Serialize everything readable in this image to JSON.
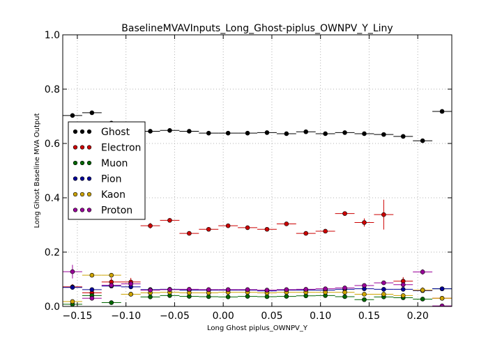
{
  "chart_data": {
    "type": "scatter",
    "title": "BaselineMVAVInputs_Long_Ghost-piplus_OWNPV_Y_Liny",
    "xlabel": "Long Ghost piplus_OWNPV_Y",
    "ylabel": "Long Ghost Baseline MVA Output",
    "xlim": [
      -0.165,
      0.235
    ],
    "ylim": [
      0.0,
      1.0
    ],
    "xticks": [
      "−0.15",
      "−0.10",
      "−0.05",
      "0.00",
      "0.05",
      "0.10",
      "0.15",
      "0.20"
    ],
    "xtick_values": [
      -0.15,
      -0.1,
      -0.05,
      0.0,
      0.05,
      0.1,
      0.15,
      0.2
    ],
    "yticks": [
      "0.0",
      "0.2",
      "0.4",
      "0.6",
      "0.8",
      "1.0"
    ],
    "ytick_values": [
      0.0,
      0.2,
      0.4,
      0.6,
      0.8,
      1.0
    ],
    "grid": true,
    "legend_position": "left",
    "x": [
      -0.155,
      -0.135,
      -0.115,
      -0.095,
      -0.075,
      -0.055,
      -0.035,
      -0.015,
      0.005,
      0.025,
      0.045,
      0.065,
      0.085,
      0.105,
      0.125,
      0.145,
      0.165,
      0.185,
      0.205,
      0.225
    ],
    "x_halfwidth": 0.01,
    "series": [
      {
        "name": "Ghost",
        "color": "#000000",
        "values": [
          0.703,
          0.713,
          0.675,
          0.655,
          0.645,
          0.648,
          0.645,
          0.638,
          0.638,
          0.638,
          0.64,
          0.636,
          0.643,
          0.636,
          0.64,
          0.636,
          0.633,
          0.626,
          0.61,
          0.718
        ],
        "errors": [
          0.005,
          0.005,
          0.005,
          0.005,
          0.004,
          0.004,
          0.004,
          0.004,
          0.004,
          0.004,
          0.004,
          0.004,
          0.004,
          0.004,
          0.004,
          0.004,
          0.004,
          0.005,
          0.006,
          0.007
        ]
      },
      {
        "name": "Electron",
        "color": "#cc0000",
        "values": [
          0.072,
          0.05,
          0.09,
          0.09,
          0.297,
          0.317,
          0.269,
          0.284,
          0.297,
          0.29,
          0.284,
          0.304,
          0.269,
          0.277,
          0.342,
          0.309,
          0.338,
          0.093,
          0.06,
          0.03
        ],
        "errors": [
          0.01,
          0.01,
          0.015,
          0.015,
          0.01,
          0.008,
          0.006,
          0.006,
          0.006,
          0.006,
          0.006,
          0.006,
          0.006,
          0.006,
          0.008,
          0.015,
          0.055,
          0.015,
          0.01,
          0.005
        ]
      },
      {
        "name": "Muon",
        "color": "#006600",
        "values": [
          0.008,
          0.04,
          0.014,
          0.045,
          0.035,
          0.04,
          0.037,
          0.036,
          0.035,
          0.037,
          0.036,
          0.037,
          0.039,
          0.04,
          0.036,
          0.025,
          0.035,
          0.032,
          0.027,
          0.065
        ],
        "errors": [
          0.005,
          0.005,
          0.004,
          0.005,
          0.003,
          0.003,
          0.003,
          0.003,
          0.003,
          0.003,
          0.003,
          0.003,
          0.003,
          0.003,
          0.003,
          0.003,
          0.003,
          0.003,
          0.004,
          0.005
        ]
      },
      {
        "name": "Pion",
        "color": "#000099",
        "values": [
          0.07,
          0.062,
          0.075,
          0.072,
          0.062,
          0.063,
          0.06,
          0.06,
          0.06,
          0.06,
          0.057,
          0.06,
          0.06,
          0.06,
          0.063,
          0.065,
          0.063,
          0.063,
          0.058,
          0.065
        ],
        "errors": [
          0.005,
          0.005,
          0.005,
          0.005,
          0.003,
          0.003,
          0.003,
          0.003,
          0.003,
          0.003,
          0.003,
          0.003,
          0.003,
          0.003,
          0.003,
          0.003,
          0.003,
          0.003,
          0.004,
          0.005
        ]
      },
      {
        "name": "Kaon",
        "color": "#cca300",
        "values": [
          0.018,
          0.115,
          0.115,
          0.045,
          0.05,
          0.052,
          0.05,
          0.05,
          0.052,
          0.052,
          0.05,
          0.052,
          0.052,
          0.052,
          0.052,
          0.045,
          0.045,
          0.04,
          0.06,
          0.03
        ],
        "errors": [
          0.005,
          0.005,
          0.005,
          0.005,
          0.004,
          0.004,
          0.004,
          0.004,
          0.004,
          0.004,
          0.004,
          0.004,
          0.004,
          0.004,
          0.004,
          0.004,
          0.004,
          0.004,
          0.01,
          0.005
        ]
      },
      {
        "name": "Proton",
        "color": "#990099",
        "values": [
          0.128,
          0.03,
          0.078,
          0.083,
          0.06,
          0.062,
          0.063,
          0.062,
          0.062,
          0.062,
          0.06,
          0.062,
          0.063,
          0.065,
          0.068,
          0.077,
          0.087,
          0.08,
          0.127,
          0.002
        ],
        "errors": [
          0.025,
          0.006,
          0.01,
          0.01,
          0.004,
          0.004,
          0.004,
          0.004,
          0.004,
          0.004,
          0.004,
          0.004,
          0.004,
          0.004,
          0.004,
          0.005,
          0.006,
          0.01,
          0.01,
          0.002
        ]
      }
    ]
  }
}
